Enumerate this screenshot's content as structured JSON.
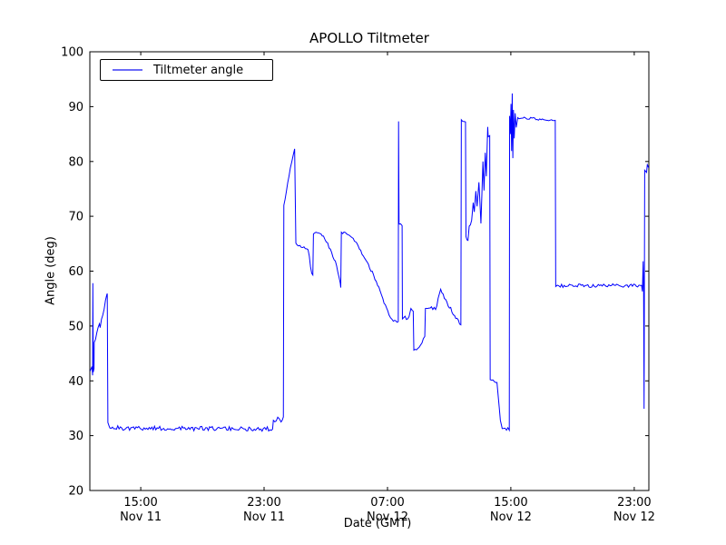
{
  "figure": {
    "background": "#ffffff",
    "axes_color": "#000000"
  },
  "legend": {
    "label": "Tiltmeter angle",
    "line_color": "#0000ff",
    "position": "upper left"
  },
  "chart_data": {
    "type": "line",
    "title": "APOLLO Tiltmeter",
    "xlabel": "Date (GMT)",
    "ylabel": "Angle (deg)",
    "ylim": [
      20,
      100
    ],
    "y_ticks": [
      20,
      30,
      40,
      50,
      60,
      70,
      80,
      90,
      100
    ],
    "xlim_hours_from_nov11_00gmt": [
      11.7,
      47.95
    ],
    "x_ticks": [
      {
        "t": 15,
        "time": "15:00",
        "date": "Nov 11"
      },
      {
        "t": 23,
        "time": "23:00",
        "date": "Nov 11"
      },
      {
        "t": 31,
        "time": "07:00",
        "date": "Nov 12"
      },
      {
        "t": 39,
        "time": "15:00",
        "date": "Nov 12"
      },
      {
        "t": 47,
        "time": "23:00",
        "date": "Nov 12"
      }
    ],
    "grid": false,
    "series": [
      {
        "name": "Tiltmeter angle",
        "color": "#0000ff",
        "segments_t0_v0_t1_v1_noise": [
          [
            11.72,
            41.8,
            11.84,
            42.6,
            0.7
          ],
          [
            11.84,
            42.6,
            11.88,
            41.0,
            0.3
          ],
          [
            11.88,
            41.0,
            11.895,
            57.8,
            0
          ],
          [
            11.895,
            57.8,
            11.92,
            41.6,
            0
          ],
          [
            11.92,
            41.6,
            11.97,
            42.2,
            0.5
          ],
          [
            11.97,
            42.2,
            11.985,
            47.0,
            0
          ],
          [
            11.985,
            47.0,
            12.32,
            50.4,
            0.35
          ],
          [
            12.32,
            50.4,
            12.37,
            49.7,
            0.15
          ],
          [
            12.37,
            49.7,
            12.8,
            55.7,
            0.35
          ],
          [
            12.8,
            55.7,
            12.83,
            55.9,
            0
          ],
          [
            12.83,
            55.9,
            12.87,
            32.4,
            0
          ],
          [
            12.87,
            32.4,
            13.0,
            31.4,
            0.3
          ],
          [
            13.0,
            31.4,
            23.55,
            31.2,
            0.42
          ],
          [
            23.55,
            31.2,
            23.6,
            32.8,
            0
          ],
          [
            23.6,
            32.8,
            23.98,
            33.1,
            0.45
          ],
          [
            23.98,
            33.1,
            24.1,
            32.5,
            0.25
          ],
          [
            24.1,
            32.5,
            24.25,
            33.4,
            0.3
          ],
          [
            24.25,
            33.4,
            24.28,
            72.0,
            0
          ],
          [
            24.28,
            72.0,
            24.7,
            78.8,
            0.25
          ],
          [
            24.7,
            78.8,
            24.98,
            82.3,
            0.2
          ],
          [
            24.98,
            82.3,
            25.06,
            65.1,
            0
          ],
          [
            25.06,
            65.1,
            25.85,
            63.9,
            0.25
          ],
          [
            25.85,
            63.9,
            26.09,
            59.6,
            0.3
          ],
          [
            26.09,
            59.6,
            26.16,
            59.3,
            0.15
          ],
          [
            26.16,
            59.3,
            26.2,
            66.8,
            0
          ],
          [
            26.2,
            66.8,
            26.45,
            67.0,
            0.2
          ],
          [
            26.45,
            67.0,
            26.85,
            66.4,
            0.25
          ],
          [
            26.85,
            66.4,
            27.3,
            64.0,
            0.3
          ],
          [
            27.3,
            64.0,
            27.7,
            61.0,
            0.3
          ],
          [
            27.7,
            61.0,
            27.94,
            57.8,
            0.25
          ],
          [
            27.94,
            57.8,
            27.97,
            57.0,
            0.15
          ],
          [
            27.97,
            57.0,
            28.01,
            67.1,
            0
          ],
          [
            28.01,
            67.1,
            28.35,
            66.8,
            0.2
          ],
          [
            28.35,
            66.8,
            28.62,
            66.3,
            0.2
          ],
          [
            28.62,
            66.3,
            29.1,
            64.6,
            0.25
          ],
          [
            29.1,
            64.6,
            29.6,
            62.0,
            0.3
          ],
          [
            29.6,
            62.0,
            30.1,
            59.3,
            0.3
          ],
          [
            30.1,
            59.3,
            30.7,
            55.0,
            0.3
          ],
          [
            30.7,
            55.0,
            31.1,
            52.0,
            0.3
          ],
          [
            31.1,
            52.0,
            31.3,
            51.2,
            0.25
          ],
          [
            31.3,
            51.2,
            31.7,
            50.8,
            0.35
          ],
          [
            31.7,
            50.8,
            31.72,
            87.3,
            0
          ],
          [
            31.72,
            87.3,
            31.75,
            68.6,
            0
          ],
          [
            31.75,
            68.6,
            31.95,
            68.3,
            0.25
          ],
          [
            31.95,
            68.3,
            31.97,
            51.3,
            0
          ],
          [
            31.97,
            51.3,
            32.4,
            51.7,
            0.4
          ],
          [
            32.4,
            51.7,
            32.52,
            53.2,
            0.3
          ],
          [
            32.52,
            53.2,
            32.67,
            52.7,
            0.3
          ],
          [
            32.67,
            52.7,
            32.71,
            45.6,
            0
          ],
          [
            32.71,
            45.6,
            33.05,
            46.1,
            0.35
          ],
          [
            33.05,
            46.1,
            33.42,
            48.1,
            0.35
          ],
          [
            33.42,
            48.1,
            33.46,
            53.2,
            0
          ],
          [
            33.46,
            53.2,
            33.85,
            53.5,
            0.4
          ],
          [
            33.85,
            53.5,
            34.12,
            53.0,
            0.4
          ],
          [
            34.12,
            53.0,
            34.45,
            56.7,
            0.35
          ],
          [
            34.45,
            56.7,
            34.85,
            54.4,
            0.35
          ],
          [
            34.85,
            54.4,
            35.35,
            51.9,
            0.35
          ],
          [
            35.35,
            51.9,
            35.76,
            50.2,
            0.3
          ],
          [
            35.76,
            50.2,
            35.79,
            87.6,
            0
          ],
          [
            35.79,
            87.6,
            36.06,
            87.2,
            0.2
          ],
          [
            36.06,
            87.2,
            36.09,
            66.3,
            0
          ],
          [
            36.09,
            66.3,
            36.22,
            65.6,
            0.35
          ],
          [
            36.22,
            65.6,
            36.3,
            68.2,
            0.3
          ],
          [
            36.3,
            68.2,
            36.46,
            69.3,
            0.4
          ],
          [
            36.46,
            69.3,
            36.56,
            72.5,
            0.35
          ],
          [
            36.56,
            72.5,
            36.63,
            70.8,
            0.25
          ],
          [
            36.63,
            70.8,
            36.73,
            74.6,
            0.25
          ],
          [
            36.73,
            74.6,
            36.81,
            71.8,
            0.25
          ],
          [
            36.81,
            71.8,
            36.93,
            76.2,
            0.25
          ],
          [
            36.93,
            76.2,
            37.06,
            68.7,
            0.25
          ],
          [
            37.06,
            68.7,
            37.19,
            80.0,
            0.25
          ],
          [
            37.19,
            80.0,
            37.26,
            74.7,
            0.2
          ],
          [
            37.26,
            74.7,
            37.34,
            81.6,
            0.2
          ],
          [
            37.34,
            81.6,
            37.41,
            77.3,
            0.2
          ],
          [
            37.41,
            77.3,
            37.5,
            86.3,
            0.15
          ],
          [
            37.5,
            86.3,
            37.53,
            84.5,
            0
          ],
          [
            37.53,
            84.5,
            37.63,
            84.7,
            0.25
          ],
          [
            37.63,
            84.7,
            37.66,
            40.2,
            0
          ],
          [
            37.66,
            40.2,
            38.1,
            39.7,
            0.35
          ],
          [
            38.1,
            39.7,
            38.32,
            32.8,
            0.2
          ],
          [
            38.32,
            32.8,
            38.44,
            31.3,
            0.15
          ],
          [
            38.44,
            31.3,
            38.9,
            31.0,
            0.4
          ],
          [
            38.9,
            31.0,
            38.92,
            88.3,
            0
          ],
          [
            38.92,
            88.3,
            38.97,
            85.0,
            0.3
          ],
          [
            38.97,
            85.0,
            39.01,
            90.5,
            0.3
          ],
          [
            39.01,
            90.5,
            39.05,
            81.9,
            0.3
          ],
          [
            39.05,
            81.9,
            39.09,
            92.4,
            0.2
          ],
          [
            39.09,
            92.4,
            39.13,
            80.6,
            0.2
          ],
          [
            39.13,
            80.6,
            39.17,
            89.4,
            0.2
          ],
          [
            39.17,
            89.4,
            39.22,
            84.2,
            0.2
          ],
          [
            39.22,
            84.2,
            39.28,
            88.8,
            0.2
          ],
          [
            39.28,
            88.8,
            39.35,
            86.2,
            0.2
          ],
          [
            39.35,
            86.2,
            39.45,
            88.0,
            0.2
          ],
          [
            39.45,
            88.0,
            41.88,
            87.5,
            0.22
          ],
          [
            41.88,
            87.5,
            41.91,
            57.2,
            0
          ],
          [
            41.91,
            57.2,
            42.12,
            57.3,
            0.3
          ],
          [
            42.12,
            57.3,
            47.48,
            57.4,
            0.32
          ],
          [
            47.48,
            57.4,
            47.53,
            56.3,
            0.2
          ],
          [
            47.53,
            56.3,
            47.58,
            61.8,
            0
          ],
          [
            47.58,
            61.8,
            47.61,
            56.5,
            0
          ],
          [
            47.61,
            56.5,
            47.64,
            34.9,
            0
          ],
          [
            47.64,
            34.9,
            47.68,
            78.4,
            0
          ],
          [
            47.68,
            78.4,
            47.8,
            78.0,
            0.25
          ],
          [
            47.8,
            78.0,
            47.85,
            79.4,
            0.15
          ],
          [
            47.85,
            79.4,
            47.95,
            78.8,
            0.2
          ]
        ]
      }
    ]
  }
}
